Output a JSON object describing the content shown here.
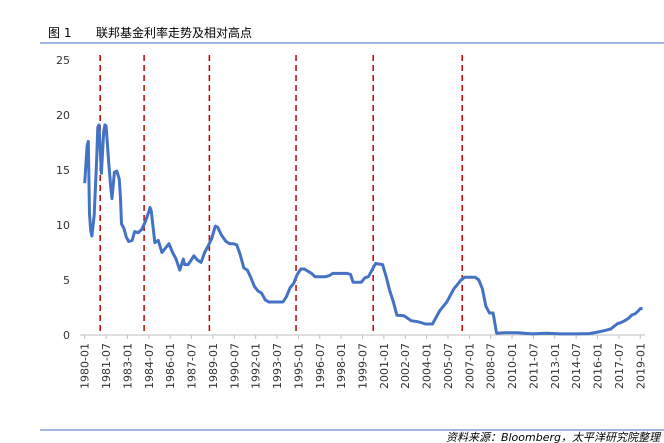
{
  "chart_data": {
    "type": "line",
    "label": "图 1",
    "title": "联邦基金利率走势及相对高点",
    "source": "资料来源：Bloomberg，太平洋研究院整理",
    "x": [
      "1980-01",
      "1980-03",
      "1980-04",
      "1980-05",
      "1980-06",
      "1980-07",
      "1980-09",
      "1980-11",
      "1980-12",
      "1981-01",
      "1981-03",
      "1981-05",
      "1981-06",
      "1981-07",
      "1981-09",
      "1981-11",
      "1981-12",
      "1982-02",
      "1982-04",
      "1982-06",
      "1982-07",
      "1982-08",
      "1982-10",
      "1982-12",
      "1983-02",
      "1983-05",
      "1983-07",
      "1983-10",
      "1984-01",
      "1984-04",
      "1984-07",
      "1984-08",
      "1984-09",
      "1984-11",
      "1984-12",
      "1985-03",
      "1985-06",
      "1985-09",
      "1985-12",
      "1986-03",
      "1986-06",
      "1986-09",
      "1986-12",
      "1987-01",
      "1987-04",
      "1987-06",
      "1987-09",
      "1987-12",
      "1988-03",
      "1988-06",
      "1988-09",
      "1988-12",
      "1989-03",
      "1989-05",
      "1989-08",
      "1989-12",
      "1990-03",
      "1990-06",
      "1990-09",
      "1990-12",
      "1991-03",
      "1991-06",
      "1991-09",
      "1991-12",
      "1992-03",
      "1992-06",
      "1992-09",
      "1992-12",
      "1993-06",
      "1993-12",
      "1994-03",
      "1994-06",
      "1994-09",
      "1994-12",
      "1995-03",
      "1995-06",
      "1995-09",
      "1995-12",
      "1996-03",
      "1996-09",
      "1996-12",
      "1997-03",
      "1997-06",
      "1998-06",
      "1998-09",
      "1998-11",
      "1999-03",
      "1999-06",
      "1999-09",
      "1999-12",
      "2000-03",
      "2000-06",
      "2000-12",
      "2001-01",
      "2001-03",
      "2001-06",
      "2001-09",
      "2001-12",
      "2002-06",
      "2002-12",
      "2003-06",
      "2003-12",
      "2004-06",
      "2004-09",
      "2004-12",
      "2005-03",
      "2005-06",
      "2005-09",
      "2005-12",
      "2006-03",
      "2006-06",
      "2006-09",
      "2007-06",
      "2007-09",
      "2007-12",
      "2008-03",
      "2008-06",
      "2008-09",
      "2008-12",
      "2009-06",
      "2010-06",
      "2011-06",
      "2012-06",
      "2013-06",
      "2014-06",
      "2015-06",
      "2015-12",
      "2016-06",
      "2016-12",
      "2017-03",
      "2017-06",
      "2017-09",
      "2017-12",
      "2018-03",
      "2018-06",
      "2018-09",
      "2018-12",
      "2019-01",
      "2019-03"
    ],
    "series": [
      {
        "color": "#4472c4",
        "values": [
          13.8,
          17.2,
          17.6,
          11,
          9.5,
          9.0,
          10.9,
          15.8,
          18.9,
          19.1,
          14.7,
          18.5,
          19.1,
          19.0,
          15.9,
          13.3,
          12.4,
          14.8,
          14.9,
          14.2,
          12.6,
          10.1,
          9.7,
          8.9,
          8.5,
          8.6,
          9.4,
          9.3,
          9.6,
          10.3,
          11.2,
          11.6,
          11.3,
          9.4,
          8.4,
          8.6,
          7.5,
          7.9,
          8.3,
          7.5,
          6.9,
          5.9,
          6.9,
          6.4,
          6.4,
          6.7,
          7.2,
          6.8,
          6.6,
          7.5,
          8.1,
          8.8,
          9.9,
          9.8,
          9.1,
          8.5,
          8.3,
          8.3,
          8.2,
          7.3,
          6.1,
          5.9,
          5.2,
          4.4,
          4.0,
          3.8,
          3.2,
          3.0,
          3.0,
          3.0,
          3.5,
          4.3,
          4.7,
          5.5,
          6.0,
          6.0,
          5.8,
          5.6,
          5.3,
          5.3,
          5.3,
          5.4,
          5.6,
          5.6,
          5.5,
          4.8,
          4.8,
          4.8,
          5.2,
          5.3,
          5.9,
          6.5,
          6.4,
          5.98,
          5.3,
          4.0,
          3.0,
          1.8,
          1.75,
          1.3,
          1.2,
          1.0,
          1.0,
          1.6,
          2.2,
          2.6,
          3.0,
          3.6,
          4.2,
          4.6,
          5.0,
          5.25,
          5.25,
          5.0,
          4.2,
          2.6,
          2.0,
          2.0,
          0.16,
          0.2,
          0.2,
          0.1,
          0.16,
          0.1,
          0.1,
          0.13,
          0.24,
          0.38,
          0.54,
          0.79,
          1.04,
          1.15,
          1.3,
          1.51,
          1.82,
          1.95,
          2.27,
          2.4,
          2.41
        ]
      }
    ],
    "highs": [
      "1981-02",
      "1984-03",
      "1988-10",
      "1994-11",
      "2000-04",
      "2006-07"
    ],
    "highs_color": "#c00000",
    "xlim": [
      "1979-09",
      "2019-05"
    ],
    "xticks": [
      "1980-01",
      "1981-07",
      "1983-01",
      "1984-07",
      "1986-01",
      "1987-07",
      "1989-01",
      "1990-07",
      "1992-01",
      "1993-07",
      "1995-01",
      "1996-07",
      "1998-01",
      "1999-07",
      "2001-01",
      "2002-07",
      "2004-01",
      "2005-07",
      "2007-01",
      "2008-07",
      "2010-01",
      "2011-07",
      "2013-01",
      "2014-07",
      "2016-01",
      "2017-07",
      "2019-01"
    ],
    "ylim": [
      0,
      25
    ],
    "yticks": [
      0,
      5,
      10,
      15,
      20,
      25
    ]
  }
}
